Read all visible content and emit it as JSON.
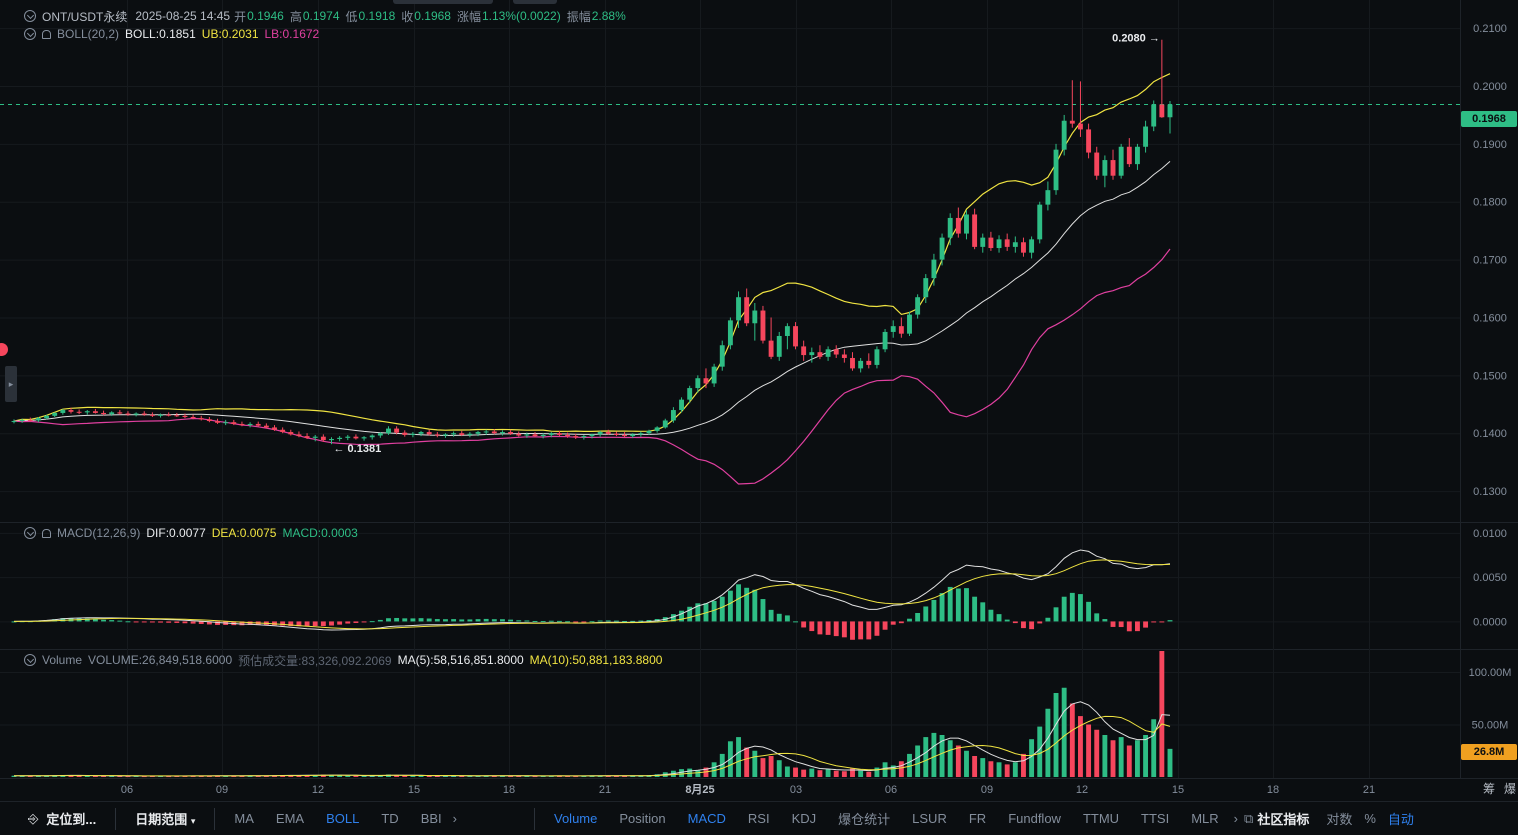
{
  "header": {
    "symbol": "ONT/USDT永续",
    "datetime": "2025-08-25 14:45",
    "open_label": "开",
    "open": "0.1946",
    "high_label": "高",
    "high": "0.1974",
    "low_label": "低",
    "low": "0.1918",
    "close_label": "收",
    "close": "0.1968",
    "change_label": "涨幅",
    "change": "1.13%(0.0022)",
    "amplitude_label": "振幅",
    "amplitude": "2.88%"
  },
  "boll": {
    "name": "BOLL(20,2)",
    "mid": "BOLL:0.1851",
    "ub": "UB:0.2031",
    "lb": "LB:0.1672"
  },
  "macd": {
    "name": "MACD(12,26,9)",
    "dif": "DIF:0.0077",
    "dea": "DEA:0.0075",
    "macd": "MACD:0.0003"
  },
  "volume": {
    "name": "Volume",
    "value": "VOLUME:26,849,518.6000",
    "estimate": "预估成交量:83,326,092.2069",
    "ma5": "MA(5):58,516,851.8000",
    "ma10": "MA(10):50,881,183.8800"
  },
  "price_axis": [
    "0.2100",
    "0.2000",
    "0.1900",
    "0.1800",
    "0.1700",
    "0.1600",
    "0.1500",
    "0.1400",
    "0.1300"
  ],
  "current_price": "0.1968",
  "high_marker": "0.2080",
  "low_marker": "0.1381",
  "macd_axis": [
    "0.0100",
    "0.0050",
    "0.0000"
  ],
  "volume_axis": [
    "100.00M",
    "50.00M"
  ],
  "volume_current": "26.8M",
  "time_axis": [
    "06",
    "09",
    "12",
    "15",
    "18",
    "21",
    "8月25",
    "03",
    "06",
    "09",
    "12",
    "15",
    "18",
    "21"
  ],
  "corner_labels": [
    "筹",
    "爆"
  ],
  "toolbar": {
    "locate": "定位到...",
    "date_range": "日期范围",
    "main_indicators": [
      "MA",
      "EMA",
      "BOLL",
      "TD",
      "BBI"
    ],
    "sub_indicators": [
      "Volume",
      "Position",
      "MACD",
      "RSI",
      "KDJ",
      "爆仓统计",
      "LSUR",
      "FR",
      "Fundflow",
      "TTMU",
      "TTSI",
      "MLR"
    ],
    "community": "社区指标",
    "log": "对数",
    "percent": "%",
    "auto": "自动"
  },
  "colors": {
    "up": "#2ebd85",
    "down": "#f6465d",
    "boll_mid": "#e0e0e0",
    "boll_ub": "#f0e442",
    "boll_lb": "#e040a0",
    "accent": "#2f80ed",
    "volume_badge": "#f0a020"
  },
  "chart_data": {
    "type": "candlestick",
    "interval": "15m",
    "price_range": [
      0.125,
      0.214
    ],
    "ohlc": [
      [
        0.142,
        0.1424,
        0.1417,
        0.1421
      ],
      [
        0.1421,
        0.1425,
        0.1418,
        0.1423
      ],
      [
        0.1423,
        0.1427,
        0.142,
        0.1422
      ],
      [
        0.1422,
        0.1428,
        0.1419,
        0.1426
      ],
      [
        0.1426,
        0.1432,
        0.1424,
        0.143
      ],
      [
        0.143,
        0.1436,
        0.1428,
        0.1435
      ],
      [
        0.1435,
        0.1442,
        0.1432,
        0.144
      ],
      [
        0.144,
        0.1444,
        0.1434,
        0.1437
      ],
      [
        0.1437,
        0.1441,
        0.1433,
        0.1436
      ],
      [
        0.1436,
        0.144,
        0.1432,
        0.1438
      ],
      [
        0.1438,
        0.1442,
        0.1434,
        0.1435
      ],
      [
        0.1435,
        0.1439,
        0.1431,
        0.1433
      ],
      [
        0.1433,
        0.1438,
        0.143,
        0.1436
      ],
      [
        0.1436,
        0.144,
        0.1432,
        0.1434
      ],
      [
        0.1434,
        0.1438,
        0.143,
        0.1432
      ],
      [
        0.1432,
        0.1436,
        0.1429,
        0.1434
      ],
      [
        0.1434,
        0.1438,
        0.143,
        0.1432
      ],
      [
        0.1432,
        0.1436,
        0.1428,
        0.143
      ],
      [
        0.143,
        0.1434,
        0.1427,
        0.1432
      ],
      [
        0.1432,
        0.1436,
        0.1429,
        0.1431
      ],
      [
        0.1431,
        0.1435,
        0.1428,
        0.143
      ],
      [
        0.143,
        0.1434,
        0.1426,
        0.1428
      ],
      [
        0.1428,
        0.1432,
        0.1424,
        0.1426
      ],
      [
        0.1426,
        0.143,
        0.1422,
        0.1424
      ],
      [
        0.1424,
        0.1428,
        0.1419,
        0.1421
      ],
      [
        0.1421,
        0.1425,
        0.1416,
        0.1418
      ],
      [
        0.1418,
        0.1423,
        0.1414,
        0.1419
      ],
      [
        0.1419,
        0.1423,
        0.1414,
        0.1416
      ],
      [
        0.1416,
        0.142,
        0.1412,
        0.1414
      ],
      [
        0.1414,
        0.1419,
        0.141,
        0.1416
      ],
      [
        0.1416,
        0.142,
        0.1411,
        0.1413
      ],
      [
        0.1413,
        0.1417,
        0.1408,
        0.141
      ],
      [
        0.141,
        0.1414,
        0.1404,
        0.1406
      ],
      [
        0.1406,
        0.141,
        0.14,
        0.1402
      ],
      [
        0.1402,
        0.1406,
        0.1396,
        0.1398
      ],
      [
        0.1398,
        0.1403,
        0.1393,
        0.1395
      ],
      [
        0.1395,
        0.14,
        0.139,
        0.1392
      ],
      [
        0.1392,
        0.1397,
        0.1386,
        0.1394
      ],
      [
        0.1394,
        0.1398,
        0.1385,
        0.1388
      ],
      [
        0.1388,
        0.1393,
        0.1381,
        0.139
      ],
      [
        0.139,
        0.1395,
        0.1386,
        0.1392
      ],
      [
        0.1392,
        0.1397,
        0.1388,
        0.1394
      ],
      [
        0.1394,
        0.1398,
        0.1389,
        0.1391
      ],
      [
        0.1391,
        0.1395,
        0.1387,
        0.1393
      ],
      [
        0.1393,
        0.1398,
        0.1389,
        0.1396
      ],
      [
        0.1396,
        0.1402,
        0.1392,
        0.14
      ],
      [
        0.14,
        0.1412,
        0.1397,
        0.1408
      ],
      [
        0.1408,
        0.1412,
        0.1398,
        0.1401
      ],
      [
        0.1401,
        0.1405,
        0.1394,
        0.1397
      ],
      [
        0.1397,
        0.1402,
        0.1393,
        0.1399
      ],
      [
        0.1399,
        0.1404,
        0.1395,
        0.1402
      ],
      [
        0.1402,
        0.1406,
        0.1396,
        0.1398
      ],
      [
        0.1398,
        0.1402,
        0.1393,
        0.1396
      ],
      [
        0.1396,
        0.14,
        0.1392,
        0.1398
      ],
      [
        0.1398,
        0.1403,
        0.1394,
        0.14
      ],
      [
        0.14,
        0.1404,
        0.1395,
        0.1397
      ],
      [
        0.1397,
        0.1402,
        0.1393,
        0.1399
      ],
      [
        0.1399,
        0.1404,
        0.1395,
        0.1402
      ],
      [
        0.1402,
        0.1406,
        0.1397,
        0.1403
      ],
      [
        0.1403,
        0.1407,
        0.1398,
        0.14
      ],
      [
        0.14,
        0.1405,
        0.1396,
        0.1402
      ],
      [
        0.1402,
        0.1406,
        0.1397,
        0.1399
      ],
      [
        0.1399,
        0.1403,
        0.1394,
        0.1396
      ],
      [
        0.1396,
        0.1401,
        0.1392,
        0.1398
      ],
      [
        0.1398,
        0.1402,
        0.1393,
        0.1395
      ],
      [
        0.1395,
        0.14,
        0.1391,
        0.1397
      ],
      [
        0.1397,
        0.1402,
        0.1393,
        0.14
      ],
      [
        0.14,
        0.1404,
        0.1395,
        0.1397
      ],
      [
        0.1397,
        0.1401,
        0.1392,
        0.1395
      ],
      [
        0.1395,
        0.1399,
        0.139,
        0.1393
      ],
      [
        0.1393,
        0.1397,
        0.1389,
        0.1395
      ],
      [
        0.1395,
        0.1399,
        0.1391,
        0.1398
      ],
      [
        0.1398,
        0.1404,
        0.1394,
        0.1402
      ],
      [
        0.1402,
        0.1406,
        0.1397,
        0.1399
      ],
      [
        0.1399,
        0.1403,
        0.1395,
        0.1397
      ],
      [
        0.1397,
        0.1402,
        0.1393,
        0.1395
      ],
      [
        0.1395,
        0.14,
        0.1392,
        0.1398
      ],
      [
        0.1398,
        0.1403,
        0.1394,
        0.14
      ],
      [
        0.14,
        0.1406,
        0.1397,
        0.1404
      ],
      [
        0.1404,
        0.1412,
        0.1401,
        0.141
      ],
      [
        0.141,
        0.1425,
        0.1408,
        0.1422
      ],
      [
        0.1422,
        0.1445,
        0.1418,
        0.144
      ],
      [
        0.144,
        0.1462,
        0.1436,
        0.1458
      ],
      [
        0.1458,
        0.1482,
        0.1452,
        0.1478
      ],
      [
        0.1478,
        0.15,
        0.147,
        0.1495
      ],
      [
        0.1495,
        0.1512,
        0.1478,
        0.1486
      ],
      [
        0.1486,
        0.152,
        0.148,
        0.1515
      ],
      [
        0.1515,
        0.156,
        0.1508,
        0.1552
      ],
      [
        0.1552,
        0.16,
        0.1545,
        0.1595
      ],
      [
        0.1595,
        0.1645,
        0.1582,
        0.1635
      ],
      [
        0.1635,
        0.165,
        0.1585,
        0.159
      ],
      [
        0.159,
        0.1625,
        0.156,
        0.1612
      ],
      [
        0.1612,
        0.162,
        0.1555,
        0.156
      ],
      [
        0.156,
        0.16,
        0.1528,
        0.1532
      ],
      [
        0.1532,
        0.1575,
        0.1525,
        0.1568
      ],
      [
        0.1568,
        0.159,
        0.1545,
        0.1585
      ],
      [
        0.1585,
        0.1592,
        0.1545,
        0.155
      ],
      [
        0.155,
        0.156,
        0.1525,
        0.1535
      ],
      [
        0.1535,
        0.1548,
        0.1522,
        0.154
      ],
      [
        0.154,
        0.1552,
        0.1528,
        0.1532
      ],
      [
        0.1532,
        0.155,
        0.1525,
        0.1545
      ],
      [
        0.1545,
        0.1552,
        0.153,
        0.1536
      ],
      [
        0.1536,
        0.1545,
        0.1522,
        0.153
      ],
      [
        0.153,
        0.154,
        0.1508,
        0.1512
      ],
      [
        0.1512,
        0.153,
        0.1505,
        0.1525
      ],
      [
        0.1525,
        0.1538,
        0.1512,
        0.1518
      ],
      [
        0.1518,
        0.155,
        0.1512,
        0.1545
      ],
      [
        0.1545,
        0.158,
        0.154,
        0.1575
      ],
      [
        0.1575,
        0.1595,
        0.1565,
        0.1585
      ],
      [
        0.1585,
        0.16,
        0.1565,
        0.1572
      ],
      [
        0.1572,
        0.161,
        0.1568,
        0.1605
      ],
      [
        0.1605,
        0.164,
        0.1598,
        0.1635
      ],
      [
        0.1635,
        0.1675,
        0.1625,
        0.1668
      ],
      [
        0.1668,
        0.171,
        0.1655,
        0.17
      ],
      [
        0.17,
        0.1745,
        0.169,
        0.1738
      ],
      [
        0.1738,
        0.178,
        0.1725,
        0.1772
      ],
      [
        0.1772,
        0.179,
        0.1738,
        0.1745
      ],
      [
        0.1745,
        0.1785,
        0.1735,
        0.1778
      ],
      [
        0.1778,
        0.1788,
        0.1718,
        0.1722
      ],
      [
        0.1722,
        0.1745,
        0.1712,
        0.1738
      ],
      [
        0.1738,
        0.1748,
        0.1715,
        0.172
      ],
      [
        0.172,
        0.1742,
        0.1712,
        0.1735
      ],
      [
        0.1735,
        0.1745,
        0.1715,
        0.1722
      ],
      [
        0.1722,
        0.174,
        0.1712,
        0.173
      ],
      [
        0.173,
        0.1738,
        0.1705,
        0.1712
      ],
      [
        0.1712,
        0.174,
        0.1702,
        0.1735
      ],
      [
        0.1735,
        0.18,
        0.1728,
        0.1795
      ],
      [
        0.1795,
        0.1835,
        0.1785,
        0.182
      ],
      [
        0.182,
        0.19,
        0.1812,
        0.189
      ],
      [
        0.189,
        0.195,
        0.188,
        0.194
      ],
      [
        0.194,
        0.201,
        0.1928,
        0.1935
      ],
      [
        0.1935,
        0.2008,
        0.1912,
        0.1925
      ],
      [
        0.1925,
        0.1935,
        0.1875,
        0.1885
      ],
      [
        0.1885,
        0.1895,
        0.1838,
        0.1845
      ],
      [
        0.1845,
        0.188,
        0.1825,
        0.1872
      ],
      [
        0.1872,
        0.189,
        0.1838,
        0.1845
      ],
      [
        0.1845,
        0.19,
        0.184,
        0.1895
      ],
      [
        0.1895,
        0.191,
        0.186,
        0.1865
      ],
      [
        0.1865,
        0.19,
        0.1855,
        0.1895
      ],
      [
        0.1895,
        0.194,
        0.1885,
        0.193
      ],
      [
        0.193,
        0.1975,
        0.1922,
        0.1968
      ],
      [
        0.1968,
        0.208,
        0.1945,
        0.1946
      ],
      [
        0.1946,
        0.1974,
        0.1918,
        0.1968
      ]
    ],
    "volume": [
      1.2,
      1.0,
      1.1,
      1.3,
      1.5,
      1.6,
      1.8,
      1.4,
      1.2,
      1.1,
      1.0,
      1.2,
      1.1,
      1.0,
      0.9,
      1.0,
      0.9,
      1.1,
      1.0,
      0.9,
      1.0,
      1.1,
      1.2,
      1.0,
      1.1,
      1.3,
      1.2,
      1.0,
      1.1,
      1.2,
      1.3,
      1.4,
      1.6,
      1.8,
      1.5,
      1.3,
      1.7,
      1.9,
      2.2,
      1.8,
      1.5,
      1.3,
      1.2,
      1.1,
      1.3,
      1.6,
      2.4,
      1.8,
      1.5,
      1.2,
      1.1,
      1.3,
      1.2,
      1.0,
      1.1,
      1.2,
      1.0,
      1.1,
      1.3,
      1.2,
      1.0,
      1.1,
      1.2,
      1.0,
      0.9,
      1.0,
      1.1,
      1.2,
      1.0,
      0.9,
      1.1,
      1.3,
      1.4,
      1.2,
      1.0,
      1.1,
      1.3,
      1.5,
      1.8,
      2.6,
      4.5,
      6.0,
      7.5,
      8.0,
      6.5,
      9.0,
      14.0,
      22.0,
      34.0,
      38.0,
      28.0,
      25.0,
      18.0,
      20.0,
      16.0,
      10.0,
      9.0,
      7.0,
      8.0,
      6.5,
      7.5,
      6.0,
      5.5,
      8.0,
      6.0,
      5.0,
      9.0,
      14.0,
      11.0,
      15.0,
      22.0,
      30.0,
      38.0,
      42.0,
      40.0,
      35.0,
      30.0,
      25.0,
      20.0,
      18.0,
      15.0,
      14.0,
      12.0,
      14.0,
      22.0,
      36.0,
      48.0,
      65.0,
      80.0,
      85.0,
      70.0,
      58.0,
      50.0,
      45.0,
      40.0,
      35.0,
      38.0,
      30.0,
      35.0,
      40.0,
      55.0,
      137.0,
      26.8
    ],
    "volume_axis_range": [
      0,
      120
    ],
    "macd_axis_range": [
      -0.003,
      0.011
    ]
  }
}
